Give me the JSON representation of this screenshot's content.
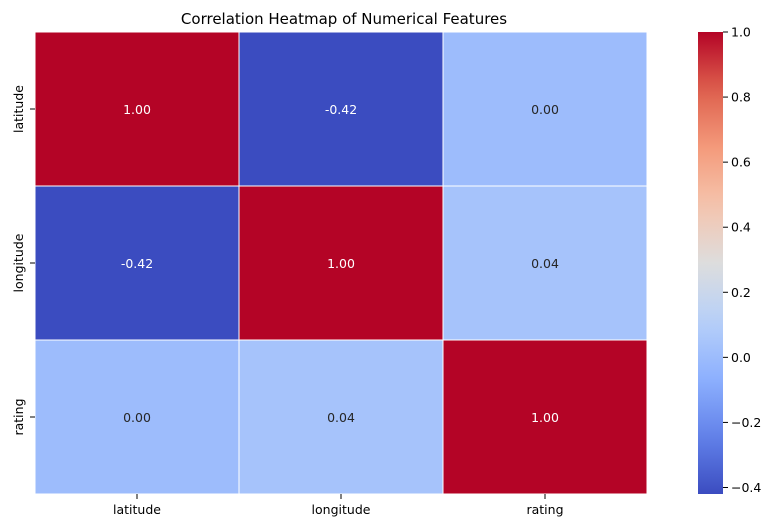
{
  "chart_data": {
    "type": "heatmap",
    "title": "Correlation Heatmap of Numerical Features",
    "x_labels": [
      "latitude",
      "longitude",
      "rating"
    ],
    "y_labels": [
      "latitude",
      "longitude",
      "rating"
    ],
    "values": [
      [
        1.0,
        -0.42,
        0.0
      ],
      [
        -0.42,
        1.0,
        0.04
      ],
      [
        0.0,
        0.04,
        1.0
      ]
    ],
    "annotations": [
      [
        "1.00",
        "-0.42",
        "0.00"
      ],
      [
        "-0.42",
        "1.00",
        "0.04"
      ],
      [
        "0.00",
        "0.04",
        "1.00"
      ]
    ],
    "colormap": "coolwarm",
    "vmin": -0.42,
    "vmax": 1.0,
    "colorbar_ticks": [
      -0.4,
      -0.2,
      0.0,
      0.2,
      0.4,
      0.6,
      0.8,
      1.0
    ],
    "colorbar_tick_labels": [
      "−0.4",
      "−0.2",
      "0.0",
      "0.2",
      "0.4",
      "0.6",
      "0.8",
      "1.0"
    ],
    "cell_border_color": "#ffffff",
    "xlabel": "",
    "ylabel": ""
  }
}
